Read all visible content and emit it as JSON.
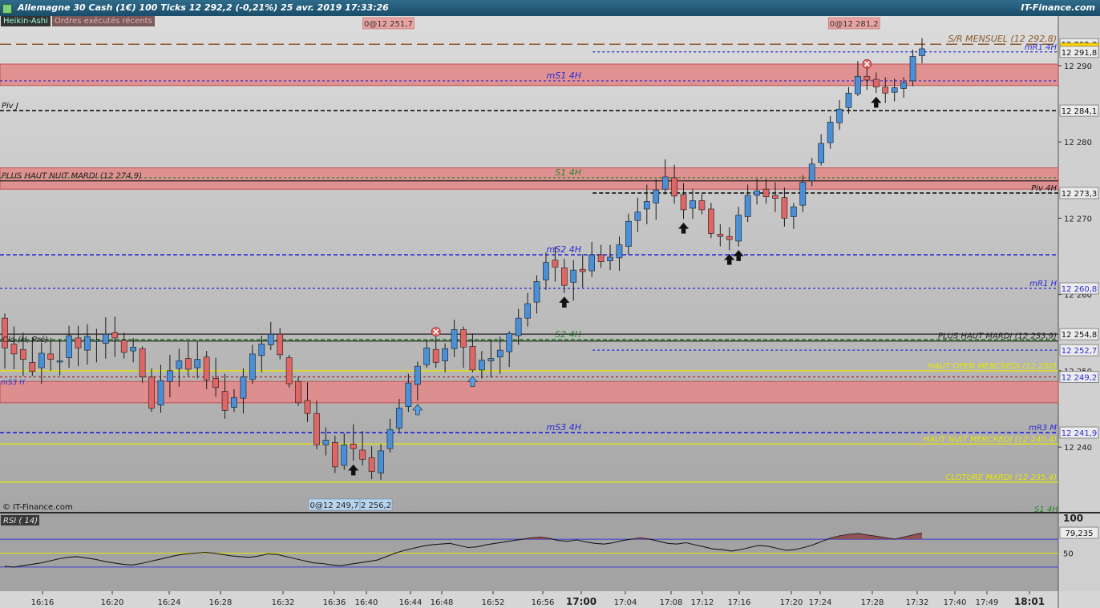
{
  "window": {
    "title": "Allemagne 30 Cash (1€)   100 Ticks   12 292,2 (-0,21%)   25 avr. 2019 17:33:26",
    "brand": "IT-Finance.com"
  },
  "tags": {
    "candles": "Heikin-Ashi",
    "orders": "Ordres exécutés récents"
  },
  "copyright": "© IT-Finance.com",
  "rsi_label": "RSI ( 14)",
  "colors": {
    "blue_candle": "#4a90d9",
    "red_candle": "#e06666",
    "zone_fill": "#e28b8b",
    "bg_top": "#dcdcdc",
    "bg_bottom": "#a8a8a8"
  },
  "chart_data": {
    "type": "candlestick",
    "y_axis_range": [
      12233.5,
      12296.5
    ],
    "y_ticks": [
      {
        "value": 12240,
        "label": "12 240"
      },
      {
        "value": 12250,
        "label": "12 250"
      },
      {
        "value": 12260,
        "label": "12 260"
      },
      {
        "value": 12270,
        "label": "12 270"
      },
      {
        "value": 12280,
        "label": "12 280"
      },
      {
        "value": 12290,
        "label": "12 290"
      }
    ],
    "x_ticks": [
      "16:16",
      "16:20",
      "16:24",
      "16:28",
      "16:32",
      "16:36",
      "16:40",
      "16:44",
      "16:48",
      "16:52",
      "16:56",
      "17:00",
      "17:04",
      "17:08",
      "17:12",
      "17:16",
      "17:20",
      "17:24",
      "17:28",
      "17:32",
      "17:40",
      "17:49",
      "18:01"
    ],
    "price_badges": [
      {
        "value": 12292.8,
        "label": "12 292,8",
        "style": "plain"
      },
      {
        "value": 12292.2,
        "label": "12 292,2",
        "style": "current"
      },
      {
        "value": 12291.8,
        "label": "12 291,8",
        "style": "plain"
      },
      {
        "value": 12284.1,
        "label": "12 284,1",
        "style": "plain"
      },
      {
        "value": 12273.3,
        "label": "12 273,3",
        "style": "plain"
      },
      {
        "value": 12260.8,
        "label": "12 260,8",
        "style": "blue"
      },
      {
        "value": 12254.8,
        "label": "12 254,8",
        "style": "plain"
      },
      {
        "value": 12252.7,
        "label": "12 252,7",
        "style": "blue"
      },
      {
        "value": 12249.2,
        "label": "12 249,2",
        "style": "blue"
      },
      {
        "value": 12241.9,
        "label": "12 241,9",
        "style": "blue"
      }
    ],
    "zones": [
      {
        "from": 12287.4,
        "to": 12290.2
      },
      {
        "from": 12273.8,
        "to": 12276.6
      },
      {
        "from": 12245.8,
        "to": 12248.6
      }
    ],
    "levels": [
      {
        "label": "S/R MENSUEL (12 292,8)",
        "value": 12292.8,
        "color": "#8b5a2b",
        "style": "longdash",
        "label_side": "right"
      },
      {
        "label": "mR1 4H",
        "value": 12291.8,
        "color": "#2b2bd6",
        "style": "dot",
        "label_side": "right",
        "x_start": 0.56
      },
      {
        "label": "mS1 4H",
        "value": 12288.0,
        "color": "#2b2bd6",
        "style": "dot",
        "label_side": "mid"
      },
      {
        "label": "Piv J",
        "value": 12284.1,
        "color": "#111111",
        "style": "dash",
        "label_side": "left"
      },
      {
        "label": "S1 4H",
        "value": 12275.3,
        "color": "#2a8a2a",
        "style": "dot",
        "label_side": "mid"
      },
      {
        "label": "PLUS HAUT NUIT MARDI (12 274,9)",
        "value": 12274.9,
        "color": "#222222",
        "style": "solid",
        "label_side": "left"
      },
      {
        "label": "Piv 4H",
        "value": 12273.3,
        "color": "#111111",
        "style": "dash",
        "label_side": "right",
        "x_start": 0.56
      },
      {
        "label": "mS2 4H",
        "value": 12265.2,
        "color": "#2b2bd6",
        "style": "dash",
        "label_side": "mid"
      },
      {
        "label": "mR1 H",
        "value": 12260.8,
        "color": "#2b2bd6",
        "style": "dot",
        "label_side": "right"
      },
      {
        "label": "S2 4H",
        "value": 12254.1,
        "color": "#2a8a2a",
        "style": "dash",
        "label_side": "mid"
      },
      {
        "label": "",
        "value": 12254.8,
        "color": "#222222",
        "style": "solid",
        "label_side": "none"
      },
      {
        "label": "PLUS HAUT MARDI (12 253,9)",
        "value": 12253.9,
        "color": "#222222",
        "style": "solid",
        "label_side": "right"
      },
      {
        "label": "",
        "value": 12252.7,
        "color": "#2b2bd6",
        "style": "dot",
        "label_side": "none",
        "x_start": 0.56
      },
      {
        "label": "HAUT OPEN MERCREDI (12 250)",
        "value": 12250.0,
        "color": "#e8e800",
        "style": "solid",
        "label_side": "right"
      },
      {
        "label": "",
        "value": 12249.2,
        "color": "#b22222",
        "style": "dot",
        "label_side": "none"
      },
      {
        "label": "mS3 4H",
        "value": 12241.9,
        "color": "#2b2bd6",
        "style": "dash",
        "label_side": "mid"
      },
      {
        "label": "mR3 M",
        "value": 12241.9,
        "color": "#2b2bd6",
        "style": "dash",
        "label_side": "right"
      },
      {
        "label": "HAUT NUIT MERCREDI (12 240,4)",
        "value": 12240.4,
        "color": "#e8e800",
        "style": "solid",
        "label_side": "right"
      },
      {
        "label": "CLOTURE MARDI (12 235,4)",
        "value": 12235.4,
        "color": "#e8e800",
        "style": "solid",
        "label_side": "right"
      }
    ],
    "corner_labels": [
      "Clo (H, Pré)",
      "mS3 H",
      "mS1 4H",
      "S1 4H"
    ],
    "order_badges": [
      {
        "text": "0@12 251,7",
        "x_fraction": 0.32
      },
      {
        "text": "0@12 281,2",
        "x_fraction": 0.76
      }
    ],
    "bottom_badges": [
      "0@12 249,7",
      "2 256,2"
    ],
    "candles": [
      [
        12256.9,
        12257.5,
        12250.3,
        12253
      ],
      [
        12253.5,
        12255.8,
        12250.2,
        12252.2
      ],
      [
        12252.8,
        12255,
        12249.3,
        12251.5
      ],
      [
        12251.1,
        12254.4,
        12249.3,
        12249.9
      ],
      [
        12250.4,
        12253.7,
        12248.3,
        12252.3
      ],
      [
        12252.2,
        12254.3,
        12250,
        12251.5
      ],
      [
        12251.2,
        12254.1,
        12249.4,
        12251.3
      ],
      [
        12251.7,
        12255.9,
        12250.4,
        12254.6
      ],
      [
        12254.3,
        12255.9,
        12250.6,
        12253
      ],
      [
        12252.7,
        12256.1,
        12250.8,
        12254.5
      ],
      [
        12254,
        12255.5,
        12251.1,
        12254
      ],
      [
        12253.6,
        12257,
        12251.6,
        12254.8
      ],
      [
        12255,
        12257.1,
        12251.8,
        12254.3
      ],
      [
        12254,
        12255,
        12251.6,
        12252.4
      ],
      [
        12252.6,
        12254.3,
        12251.1,
        12253.1
      ],
      [
        12252.9,
        12253.2,
        12248.4,
        12249.2
      ],
      [
        12249.2,
        12250.3,
        12244.6,
        12245.1
      ],
      [
        12245.5,
        12250.8,
        12244.5,
        12248.7
      ],
      [
        12248.6,
        12252.1,
        12246.5,
        12250
      ],
      [
        12250.3,
        12252.9,
        12247.9,
        12251.3
      ],
      [
        12251.6,
        12253.8,
        12249.3,
        12250.2
      ],
      [
        12250.4,
        12253.8,
        12249,
        12251.5
      ],
      [
        12251.8,
        12252.6,
        12247.6,
        12248.8
      ],
      [
        12249,
        12251.7,
        12246.6,
        12247.8
      ],
      [
        12247.3,
        12249.6,
        12243.7,
        12244.8
      ],
      [
        12245.2,
        12247.6,
        12244.6,
        12246.5
      ],
      [
        12246.4,
        12250.3,
        12244.4,
        12249.2
      ],
      [
        12248.9,
        12253.4,
        12248.3,
        12252.2
      ],
      [
        12252,
        12254.6,
        12249.8,
        12253.5
      ],
      [
        12253.4,
        12256.4,
        12252.7,
        12254.8
      ],
      [
        12254.8,
        12255.6,
        12251.5,
        12252.1
      ],
      [
        12251.7,
        12252.1,
        12247.8,
        12248.3
      ],
      [
        12248.6,
        12249.3,
        12245.4,
        12245.8
      ],
      [
        12246.1,
        12248.5,
        12243.3,
        12244.4
      ],
      [
        12244.4,
        12246.1,
        12239.7,
        12240.3
      ],
      [
        12240.3,
        12242.6,
        12238.9,
        12240.9
      ],
      [
        12240.6,
        12241.5,
        12236.6,
        12237.4
      ],
      [
        12237.6,
        12241.8,
        12237,
        12240.3
      ],
      [
        12240.4,
        12243,
        12238.2,
        12239.8
      ],
      [
        12239.6,
        12242.1,
        12237.6,
        12238.4
      ],
      [
        12238.6,
        12240.1,
        12235.8,
        12236.8
      ],
      [
        12236.6,
        12240.4,
        12235.7,
        12239.5
      ],
      [
        12239.8,
        12243.7,
        12239.3,
        12242.3
      ],
      [
        12242.5,
        12246.3,
        12241.9,
        12245.1
      ],
      [
        12245.3,
        12249.6,
        12244.6,
        12248.4
      ],
      [
        12248.2,
        12251.2,
        12246.1,
        12250.6
      ],
      [
        12250.8,
        12254,
        12250.4,
        12253
      ],
      [
        12252.8,
        12254.7,
        12250.4,
        12251.1
      ],
      [
        12251.3,
        12253.6,
        12249.8,
        12252.9
      ],
      [
        12252.9,
        12256.7,
        12251.8,
        12255.4
      ],
      [
        12255.4,
        12255.8,
        12250.4,
        12253.1
      ],
      [
        12253.2,
        12254.9,
        12249.8,
        12250.1
      ],
      [
        12250.1,
        12252.6,
        12249,
        12251.4
      ],
      [
        12251.3,
        12254.1,
        12249.1,
        12251.6
      ],
      [
        12251.8,
        12254.5,
        12249.6,
        12252.7
      ],
      [
        12252.5,
        12255.2,
        12250.5,
        12254.9
      ],
      [
        12254.6,
        12258.1,
        12253.4,
        12256.9
      ],
      [
        12256.9,
        12260.2,
        12255.8,
        12258.8
      ],
      [
        12259,
        12262.5,
        12257.5,
        12261.7
      ],
      [
        12261.9,
        12265.5,
        12260.6,
        12264.2
      ],
      [
        12264.5,
        12266.3,
        12261.7,
        12263.6
      ],
      [
        12263.5,
        12264.7,
        12260.2,
        12261.2
      ],
      [
        12261.6,
        12264.5,
        12259.2,
        12263.2
      ],
      [
        12263.3,
        12265.3,
        12260.9,
        12263
      ],
      [
        12263.1,
        12266.9,
        12262.3,
        12265.2
      ],
      [
        12265.2,
        12266.5,
        12263.5,
        12264.3
      ],
      [
        12264.4,
        12266.5,
        12263.2,
        12264.9
      ],
      [
        12264.8,
        12267.6,
        12263.1,
        12266.5
      ],
      [
        12266.3,
        12270.6,
        12265.2,
        12269.6
      ],
      [
        12269.7,
        12272.7,
        12268.2,
        12270.8
      ],
      [
        12271.2,
        12274.4,
        12269.2,
        12272.2
      ],
      [
        12272,
        12275.1,
        12269.8,
        12273.7
      ],
      [
        12273.8,
        12277.7,
        12273.1,
        12275.4
      ],
      [
        12275.3,
        12277,
        12271.9,
        12272.9
      ],
      [
        12273.1,
        12274.6,
        12269.9,
        12271.1
      ],
      [
        12271.3,
        12273.8,
        12269.9,
        12272.3
      ],
      [
        12272.3,
        12273.2,
        12270.5,
        12271.1
      ],
      [
        12271.2,
        12272,
        12267.4,
        12268
      ],
      [
        12267.9,
        12269.2,
        12266.3,
        12267.6
      ],
      [
        12267.6,
        12268.8,
        12265.8,
        12267.2
      ],
      [
        12267,
        12271.5,
        12266.3,
        12270.4
      ],
      [
        12270.2,
        12274.4,
        12269.5,
        12273
      ],
      [
        12273,
        12275.2,
        12271.8,
        12273.6
      ],
      [
        12273.8,
        12275.1,
        12271.9,
        12272.8
      ],
      [
        12273,
        12274.7,
        12270.8,
        12272.6
      ],
      [
        12272.7,
        12274,
        12268.9,
        12270
      ],
      [
        12270.2,
        12272,
        12268.6,
        12271.5
      ],
      [
        12271.7,
        12275.6,
        12270.8,
        12274.7
      ],
      [
        12274.9,
        12277.9,
        12274.2,
        12277.1
      ],
      [
        12277.3,
        12281,
        12276.9,
        12279.8
      ],
      [
        12279.9,
        12283.4,
        12279.1,
        12282.6
      ],
      [
        12282.5,
        12285.5,
        12281.6,
        12284.3
      ],
      [
        12284.5,
        12287.2,
        12283.7,
        12286.4
      ],
      [
        12286.3,
        12290.6,
        12286,
        12288.6
      ],
      [
        12288.6,
        12289.8,
        12286.8,
        12288.1
      ],
      [
        12288.2,
        12289.1,
        12286.4,
        12287.2
      ],
      [
        12287.2,
        12288.5,
        12285.1,
        12286.4
      ],
      [
        12286.5,
        12288.3,
        12285.3,
        12287.1
      ],
      [
        12287,
        12288.5,
        12285.8,
        12287.8
      ],
      [
        12288,
        12292.1,
        12287.3,
        12291.2
      ],
      [
        12291.3,
        12293.6,
        12290.3,
        12292.2
      ]
    ],
    "arrows": [
      {
        "index": 38,
        "dir": "up",
        "color": "#111"
      },
      {
        "index": 51,
        "dir": "up",
        "color": "#5aa0e8"
      },
      {
        "index": 45,
        "dir": "up",
        "color": "#5aa0e8"
      },
      {
        "index": 61,
        "dir": "up",
        "color": "#111"
      },
      {
        "index": 74,
        "dir": "up",
        "color": "#111"
      },
      {
        "index": 79,
        "dir": "up",
        "color": "#111"
      },
      {
        "index": 80,
        "dir": "up",
        "color": "#111"
      },
      {
        "index": 95,
        "dir": "up",
        "color": "#111"
      }
    ],
    "x_marks": [
      47,
      94
    ],
    "rsi": {
      "current_label": "79,235",
      "levels": [
        {
          "value": 100,
          "label": "100"
        },
        {
          "value": 70,
          "label": ""
        },
        {
          "value": 50,
          "label": "50"
        },
        {
          "value": 30,
          "label": ""
        }
      ],
      "values": [
        31,
        30,
        32,
        34,
        36,
        39,
        42,
        44,
        45,
        43,
        41,
        38,
        36,
        34,
        33,
        35,
        38,
        41,
        44,
        47,
        49,
        50,
        51,
        50,
        48,
        46,
        45,
        44,
        46,
        49,
        48,
        45,
        42,
        39,
        36,
        35,
        33,
        32,
        34,
        36,
        38,
        40,
        45,
        50,
        54,
        57,
        60,
        62,
        63,
        64,
        61,
        58,
        59,
        62,
        64,
        66,
        68,
        70,
        72,
        73,
        71,
        68,
        67,
        69,
        66,
        64,
        63,
        65,
        68,
        70,
        72,
        70,
        67,
        64,
        63,
        65,
        62,
        59,
        56,
        55,
        53,
        55,
        58,
        61,
        60,
        57,
        54,
        55,
        58,
        62,
        67,
        72,
        75,
        77,
        78,
        76,
        74,
        72,
        70,
        73,
        76,
        79
      ]
    }
  }
}
